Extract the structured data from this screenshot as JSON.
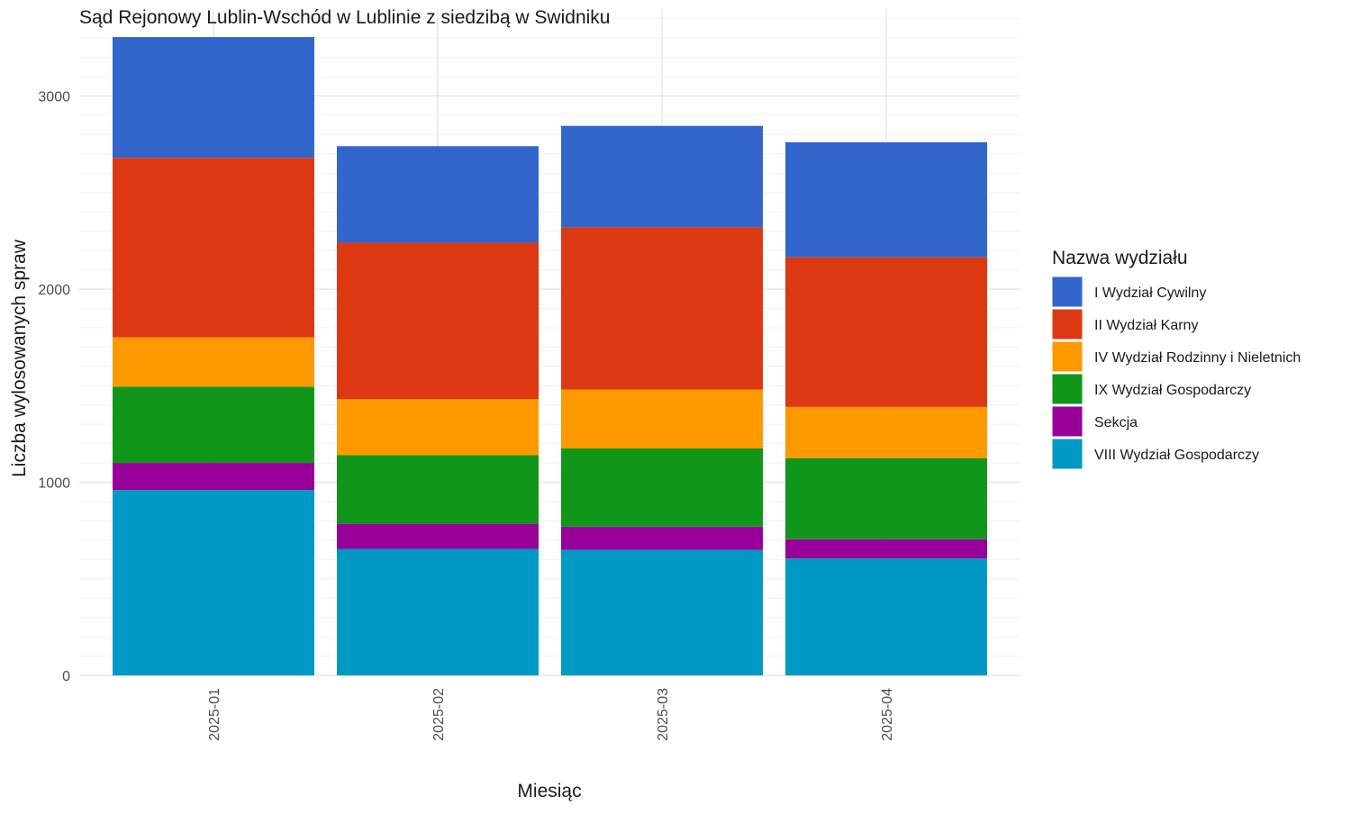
{
  "chart_data": {
    "type": "bar",
    "stacked": true,
    "title": "Sąd Rejonowy Lublin-Wschód w Lublinie z siedzibą w Swidniku",
    "xlabel": "Miesiąc",
    "ylabel": "Liczba wylosowanych spraw",
    "categories": [
      "2025-01",
      "2025-02",
      "2025-03",
      "2025-04"
    ],
    "ylim": [
      0,
      3450
    ],
    "yticks": [
      0,
      1000,
      2000,
      3000
    ],
    "grid": true,
    "legend_title": "Nazwa wydziału",
    "legend_position": "right",
    "series": [
      {
        "name": "VIII Wydział Gospodarczy",
        "color": "#0099C6",
        "values": [
          960,
          655,
          650,
          605
        ]
      },
      {
        "name": "Sekcja",
        "color": "#990099",
        "values": [
          140,
          130,
          120,
          100
        ]
      },
      {
        "name": "IX Wydział Gospodarczy",
        "color": "#109618",
        "values": [
          395,
          355,
          405,
          420
        ]
      },
      {
        "name": "IV Wydział Rodzinny i Nieletnich",
        "color": "#FF9900",
        "values": [
          255,
          290,
          305,
          265
        ]
      },
      {
        "name": "II Wydział Karny",
        "color": "#DC3912",
        "values": [
          930,
          810,
          840,
          775
        ]
      },
      {
        "name": "I Wydział Cywilny",
        "color": "#3366CC",
        "values": [
          625,
          500,
          525,
          595
        ]
      }
    ],
    "legend_order": [
      "I Wydział Cywilny",
      "II Wydział Karny",
      "IV Wydział Rodzinny i Nieletnich",
      "IX Wydział Gospodarczy",
      "Sekcja",
      "VIII Wydział Gospodarczy"
    ]
  }
}
